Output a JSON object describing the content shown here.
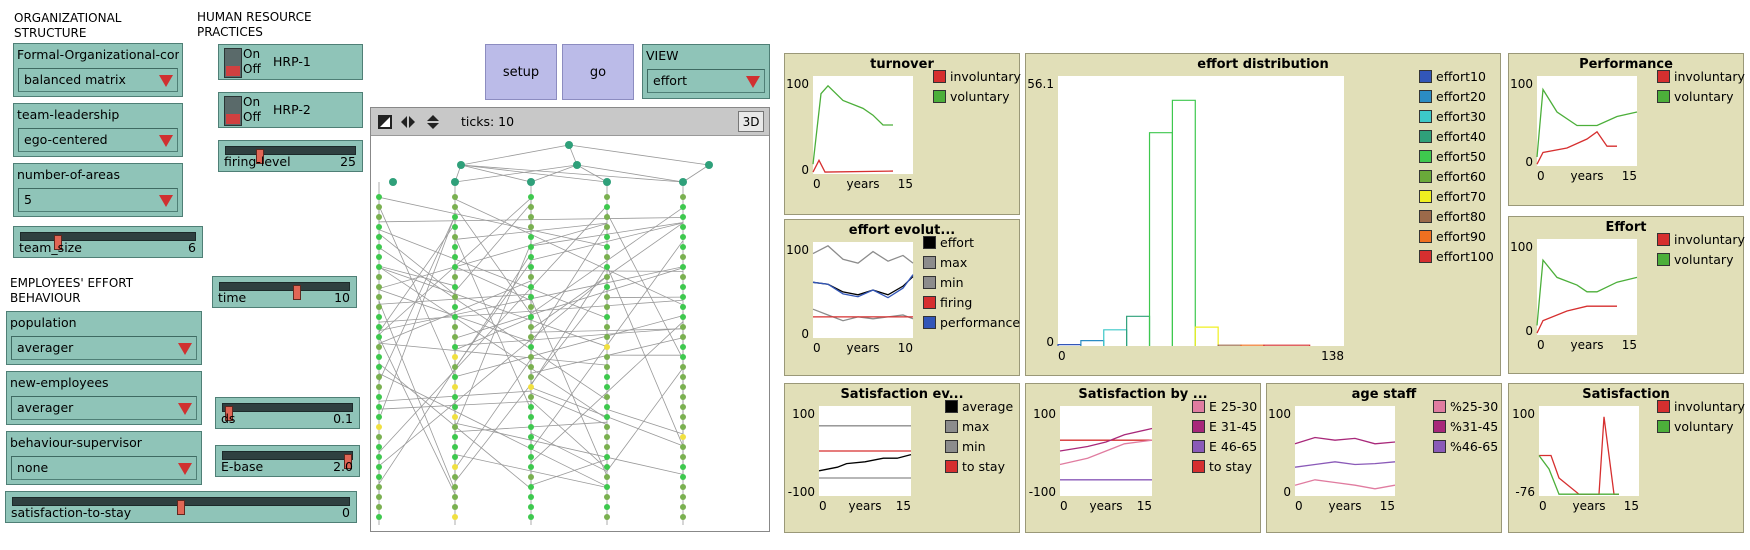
{
  "sections": {
    "org": "ORGANIZATIONAL STRUCTURE",
    "hrp": "HUMAN RESOURCE PRACTICES",
    "eeb": "EMPLOYEES' EFFORT BEHAVIOUR"
  },
  "choosers": {
    "formal": {
      "label": "Formal-Organizational-confi...",
      "value": "balanced matrix"
    },
    "leadership": {
      "label": "team-leadership",
      "value": "ego-centered"
    },
    "areas": {
      "label": "number-of-areas",
      "value": "5"
    },
    "population": {
      "label": "population",
      "value": "averager"
    },
    "newemp": {
      "label": "new-employees",
      "value": "averager"
    },
    "supervisor": {
      "label": "behaviour-supervisor",
      "value": "none"
    },
    "view": {
      "label": "VIEW",
      "value": "effort"
    }
  },
  "sliders": {
    "team_size": {
      "label": "team_size",
      "value": "6",
      "level": 0.2
    },
    "firing": {
      "label": "firing-level",
      "value": "25",
      "level": 0.25
    },
    "time": {
      "label": "time",
      "value": "10",
      "level": 0.6
    },
    "ds": {
      "label": "ds",
      "value": "0.1",
      "level": 0.02
    },
    "ebase": {
      "label": "E-base",
      "value": "2.0",
      "level": 1.0
    },
    "stay": {
      "label": "satisfaction-to-stay",
      "value": "0",
      "level": 0.5
    }
  },
  "switches": {
    "hrp1": {
      "on": "On",
      "off": "Off",
      "label": "HRP-1"
    },
    "hrp2": {
      "on": "On",
      "off": "Off",
      "label": "HRP-2"
    }
  },
  "buttons": {
    "setup": "setup",
    "go": "go"
  },
  "world": {
    "ticks": "ticks: 10",
    "btn3d": "3D"
  },
  "colors": {
    "plot_bg": "#e1dfb8",
    "widget": "#8fc4b8",
    "button": "#bbbbe8"
  },
  "plots": {
    "turnover": {
      "title": "turnover",
      "ymax": "100",
      "ymin": "0",
      "xmin": "0",
      "xlabel": "years",
      "xmax": "15",
      "legend": [
        [
          "involuntary",
          "#d62f2f"
        ],
        [
          "voluntary",
          "#4caf3a"
        ]
      ]
    },
    "effort_evo": {
      "title": "effort evolut...",
      "ymax": "100",
      "ymin": "0",
      "xmin": "0",
      "xlabel": "years",
      "xmax": "10",
      "legend": [
        [
          "effort",
          "#000000"
        ],
        [
          "max",
          "#8c8c8c"
        ],
        [
          "min",
          "#8c8c8c"
        ],
        [
          "firing",
          "#d62f2f"
        ],
        [
          "performance",
          "#3256b8"
        ]
      ]
    },
    "effort_dist": {
      "title": "effort distribution",
      "ymax": "56.1",
      "ymin": "0",
      "xmin": "0",
      "xmax": "138",
      "legend": [
        [
          "effort10",
          "#3256b8"
        ],
        [
          "effort20",
          "#2b8cc4"
        ],
        [
          "effort30",
          "#3cc8c8"
        ],
        [
          "effort40",
          "#2fa07a"
        ],
        [
          "effort50",
          "#3ec84e"
        ],
        [
          "effort60",
          "#6aaa3a"
        ],
        [
          "effort70",
          "#f0f020"
        ],
        [
          "effort80",
          "#9c6a4a"
        ],
        [
          "effort90",
          "#f07020"
        ],
        [
          "effort100",
          "#d62f2f"
        ]
      ]
    },
    "performance": {
      "title": "Performance",
      "ymax": "100",
      "ymin": "0",
      "xmin": "0",
      "xlabel": "years",
      "xmax": "15",
      "legend": [
        [
          "involuntary",
          "#d62f2f"
        ],
        [
          "voluntary",
          "#4caf3a"
        ]
      ]
    },
    "effort": {
      "title": "Effort",
      "ymax": "100",
      "ymin": "0",
      "xmin": "0",
      "xlabel": "years",
      "xmax": "15",
      "legend": [
        [
          "involuntary",
          "#d62f2f"
        ],
        [
          "voluntary",
          "#4caf3a"
        ]
      ]
    },
    "sat_evo": {
      "title": "Satisfaction ev...",
      "ymax": "100",
      "ymin": "-100",
      "xmin": "0",
      "xlabel": "years",
      "xmax": "15",
      "legend": [
        [
          "average",
          "#000000"
        ],
        [
          "max",
          "#8c8c8c"
        ],
        [
          "min",
          "#8c8c8c"
        ],
        [
          "to stay",
          "#d62f2f"
        ]
      ]
    },
    "sat_by": {
      "title": "Satisfaction by ...",
      "ymax": "100",
      "ymin": "-100",
      "xmin": "0",
      "xlabel": "years",
      "xmax": "15",
      "legend": [
        [
          "E 25-30",
          "#e07ca0"
        ],
        [
          "E 31-45",
          "#a8287a"
        ],
        [
          "E 46-65",
          "#8a5ab8"
        ],
        [
          "to stay",
          "#d62f2f"
        ]
      ]
    },
    "age_staff": {
      "title": "age staff",
      "ymax": "100",
      "ymin": "0",
      "xmin": "0",
      "xlabel": "years",
      "xmax": "15",
      "legend": [
        [
          "%25-30",
          "#e07ca0"
        ],
        [
          "%31-45",
          "#a8287a"
        ],
        [
          "%46-65",
          "#8a5ab8"
        ]
      ]
    },
    "satisfaction": {
      "title": "Satisfaction",
      "ymax": "100",
      "ymin": "-76",
      "xmin": "0",
      "xlabel": "years",
      "xmax": "15",
      "legend": [
        [
          "involuntary",
          "#d62f2f"
        ],
        [
          "voluntary",
          "#4caf3a"
        ]
      ]
    }
  }
}
